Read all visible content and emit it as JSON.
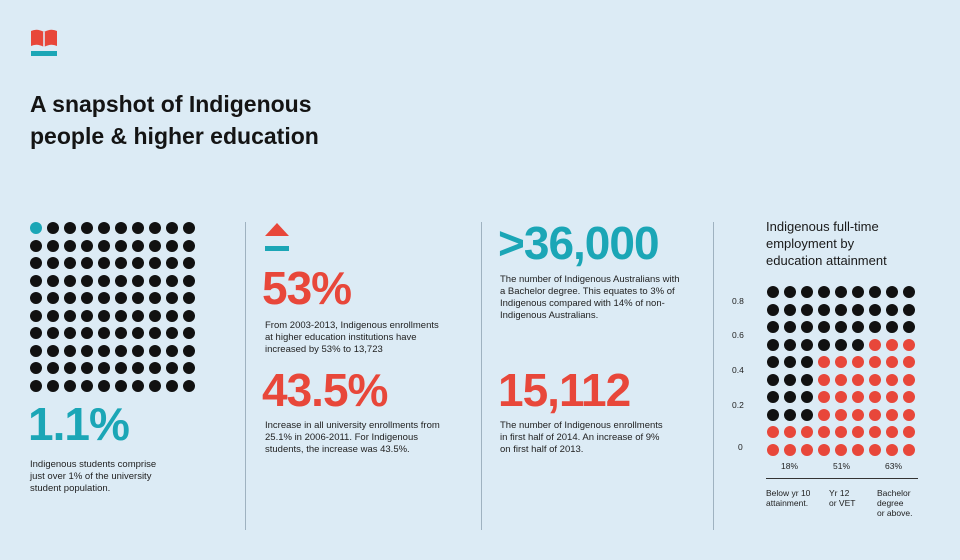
{
  "title": {
    "line1": "A snapshot of Indigenous",
    "line2": "people & higher education"
  },
  "colors": {
    "background": "#dcebf5",
    "teal": "#1ba6b6",
    "red": "#e8473a",
    "dark": "#111111"
  },
  "col1": {
    "dot_total": 100,
    "dot_highlight": 1,
    "value": "1.1%",
    "description": [
      "Indigenous students comprise",
      "just over 1% of the university",
      "student population."
    ]
  },
  "col2": {
    "icon": "up-arrow-icon",
    "stat1": {
      "value": "53%",
      "description": [
        "From 2003-2013, Indigenous enrollments",
        "at higher education institutions have",
        "increased by 53% to 13,723"
      ]
    },
    "stat2": {
      "value": "43.5%",
      "description": [
        "Increase in all university enrollments from",
        "25.1% in 2006-2011. For Indigenous",
        "students, the increase was 43.5%."
      ]
    }
  },
  "col3": {
    "stat1": {
      "value": ">36,000",
      "description": [
        "The number of Indigenous Australians with",
        "a Bachelor degree. This equates to 3% of",
        "Indigenous compared with 14% of non-",
        "Indigenous Australians."
      ]
    },
    "stat2": {
      "value": "15,112",
      "description": [
        "The number of Indigenous enrollments",
        "in first half of 2014. An increase of 9%",
        "on first half of 2013."
      ]
    }
  },
  "chart_data": {
    "type": "dot-matrix",
    "title": [
      "Indigenous full-time",
      "employment by",
      "education attainment"
    ],
    "y_ticks": [
      "0.8",
      "0.6",
      "0.4",
      "0.2",
      "0"
    ],
    "ylim": [
      0,
      0.9
    ],
    "categories": [
      "Below yr 10 attainment.",
      "Yr 12 or VET",
      "Bachelor degree or above."
    ],
    "category_label_lines": [
      [
        "Below yr 10",
        "attainment."
      ],
      [
        "Yr 12",
        "or VET"
      ],
      [
        "Bachelor",
        "degree",
        "or above."
      ]
    ],
    "value_labels": [
      "18%",
      "51%",
      "63%"
    ],
    "values": [
      0.18,
      0.51,
      0.63
    ],
    "grid": {
      "cols": 9,
      "rows": 10,
      "cols_per_category": 3
    },
    "filled_color": "#e8473a",
    "empty_color": "#111111"
  }
}
